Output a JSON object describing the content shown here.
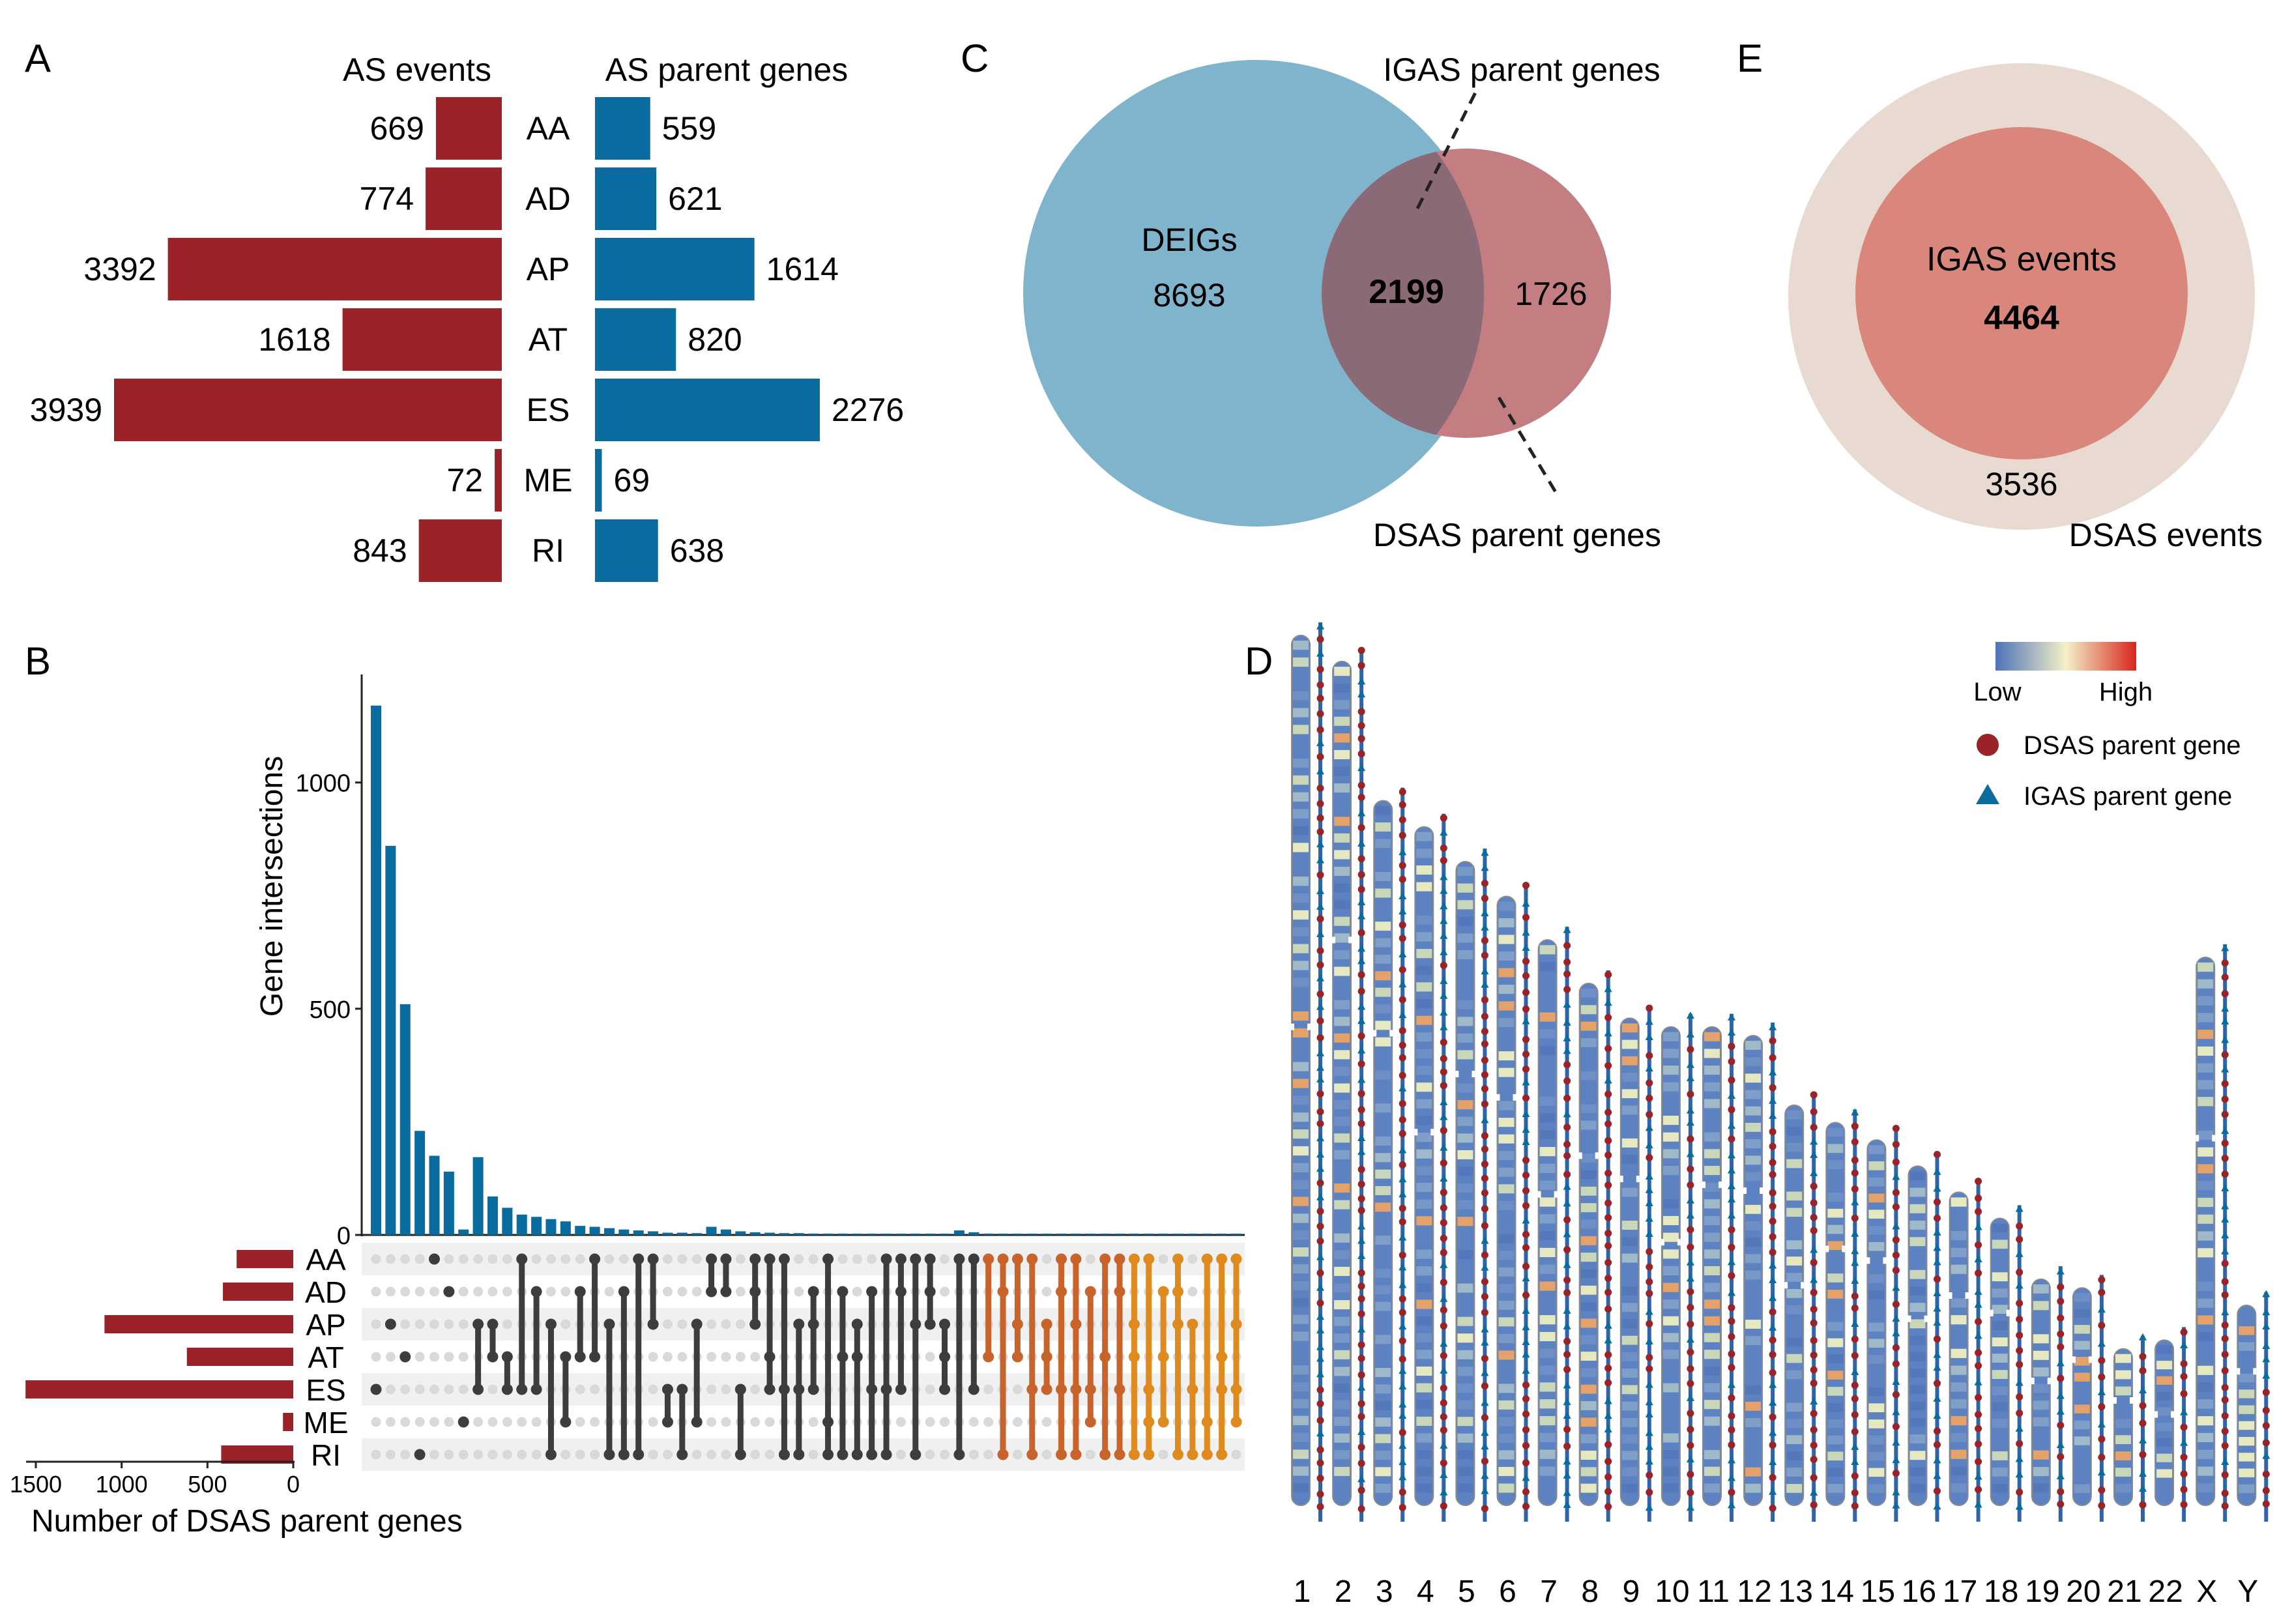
{
  "panels": {
    "a": "A",
    "b": "B",
    "c": "C",
    "d": "D",
    "e": "E"
  },
  "colors": {
    "red": "#9b2226",
    "blue": "#0a6b9e",
    "dark": "#3d3d3d",
    "orange1": "#c8642b",
    "orange2": "#df8a1f",
    "venn_blue": "#7fb4cc",
    "venn_red": "#c47d80",
    "venn_overlap": "#8b6a78",
    "nest_outer": "#e8dad0",
    "nest_inner": "#d9877d"
  },
  "chart_data": [
    {
      "type": "bar",
      "panel": "A",
      "title_left": "AS events",
      "title_right": "AS parent genes",
      "categories": [
        "AA",
        "AD",
        "AP",
        "AT",
        "ES",
        "ME",
        "RI"
      ],
      "series": [
        {
          "name": "AS events",
          "values": [
            669,
            774,
            3392,
            1618,
            3939,
            72,
            843
          ]
        },
        {
          "name": "AS parent genes",
          "values": [
            559,
            621,
            1614,
            820,
            2276,
            69,
            638
          ]
        }
      ]
    },
    {
      "type": "bar",
      "panel": "B",
      "subtype": "upset",
      "ylabel": "Gene intersections",
      "xlabel": "Number of DSAS parent genes",
      "yticks": [
        0,
        500,
        1000
      ],
      "ylim": [
        0,
        1220
      ],
      "xticks": [
        1500,
        1000,
        500,
        0
      ],
      "sets": [
        "AA",
        "AD",
        "AP",
        "AT",
        "ES",
        "ME",
        "RI"
      ],
      "set_sizes": [
        330,
        410,
        1100,
        620,
        1560,
        60,
        420
      ],
      "intersection_values": [
        1170,
        860,
        510,
        230,
        175,
        140,
        12,
        172,
        85,
        60,
        45,
        40,
        35,
        30,
        20,
        18,
        15,
        12,
        10,
        8,
        5,
        5,
        4,
        18,
        12,
        8,
        6,
        5,
        4,
        4,
        3,
        3,
        3,
        2,
        2,
        2,
        2,
        2,
        2,
        2,
        10,
        6,
        3,
        2,
        2,
        2,
        1,
        1,
        1,
        1,
        1,
        1,
        1,
        1,
        1,
        1,
        1,
        1,
        1,
        1
      ],
      "combos": [
        [
          4
        ],
        [
          2
        ],
        [
          3
        ],
        [
          6
        ],
        [
          0
        ],
        [
          1
        ],
        [
          5
        ],
        [
          2,
          4
        ],
        [
          2,
          3
        ],
        [
          3,
          4
        ],
        [
          0,
          4
        ],
        [
          1,
          4
        ],
        [
          2,
          6
        ],
        [
          3,
          5
        ],
        [
          1,
          3
        ],
        [
          0,
          3
        ],
        [
          2,
          6
        ],
        [
          1,
          6
        ],
        [
          0,
          6
        ],
        [
          0,
          2
        ],
        [
          4,
          5
        ],
        [
          4,
          6
        ],
        [
          2,
          5
        ],
        [
          0,
          1
        ],
        [
          0,
          1
        ],
        [
          4,
          6
        ],
        [
          0,
          1,
          2
        ],
        [
          0,
          3,
          4
        ],
        [
          0,
          4,
          6
        ],
        [
          2,
          4,
          6
        ],
        [
          1,
          2,
          4
        ],
        [
          0,
          5,
          6
        ],
        [
          1,
          3,
          6
        ],
        [
          2,
          3,
          6
        ],
        [
          1,
          4,
          6
        ],
        [
          0,
          4,
          6
        ],
        [
          0,
          1,
          4
        ],
        [
          0,
          2,
          6
        ],
        [
          0,
          1,
          2
        ],
        [
          2,
          3,
          4
        ],
        [
          0,
          6
        ],
        [
          0,
          4
        ],
        [
          0,
          3
        ],
        [
          0,
          1,
          6
        ],
        [
          0,
          2,
          3
        ],
        [
          0,
          4,
          6
        ],
        [
          2,
          3,
          4
        ],
        [
          0,
          1,
          4,
          6
        ],
        [
          0,
          2,
          4,
          6
        ],
        [
          1,
          4,
          5
        ],
        [
          0,
          3,
          6
        ],
        [
          0,
          1,
          4,
          6
        ],
        [
          0,
          2,
          3,
          6
        ],
        [
          0,
          4,
          5,
          6
        ],
        [
          1,
          3,
          5
        ],
        [
          0,
          1,
          2,
          6
        ],
        [
          2,
          4,
          6
        ],
        [
          0,
          5,
          6
        ],
        [
          0,
          3,
          4,
          6
        ],
        [
          0,
          2,
          4,
          5
        ]
      ]
    },
    {
      "type": "venn",
      "panel": "C",
      "sets": [
        "DEIGs",
        "DSAS parent genes"
      ],
      "values": {
        "DEIGs_only": 8693,
        "overlap": 2199,
        "DSAS_only": 1726
      },
      "labels": {
        "deigs": "DEIGs",
        "deigs_value": "8693",
        "overlap_value": "2199",
        "dsas_value": "1726",
        "overlap_callout": "IGAS parent genes",
        "dsas_callout": "DSAS parent genes"
      }
    },
    {
      "type": "nested",
      "panel": "E",
      "values": {
        "IGAS events": 4464,
        "DSAS only": 3536
      },
      "labels": {
        "inner": "IGAS events",
        "inner_value": "4464",
        "outer_value": "3536",
        "outer": "DSAS events"
      }
    },
    {
      "type": "karyotype",
      "panel": "D",
      "chromosomes": [
        "1",
        "2",
        "3",
        "4",
        "5",
        "6",
        "7",
        "8",
        "9",
        "10",
        "11",
        "12",
        "13",
        "14",
        "15",
        "16",
        "17",
        "18",
        "19",
        "20",
        "21",
        "22",
        "X",
        "Y"
      ],
      "relative_lengths": [
        1.0,
        0.97,
        0.81,
        0.78,
        0.74,
        0.7,
        0.65,
        0.6,
        0.56,
        0.55,
        0.55,
        0.54,
        0.46,
        0.44,
        0.42,
        0.39,
        0.36,
        0.33,
        0.26,
        0.25,
        0.18,
        0.19,
        0.63,
        0.23
      ],
      "legend": {
        "low": "Low",
        "high": "High",
        "dsas": "DSAS parent gene",
        "igas": "IGAS parent gene"
      }
    }
  ]
}
